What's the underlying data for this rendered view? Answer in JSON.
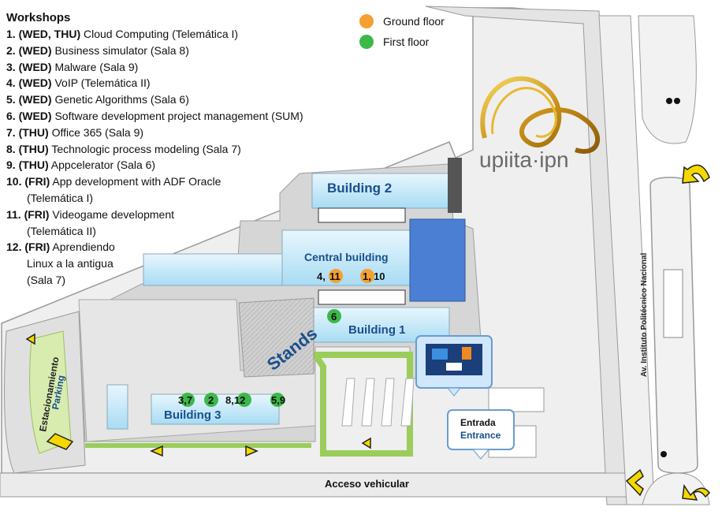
{
  "workshops": {
    "title": "Workshops",
    "items": [
      {
        "num": "1.",
        "days": "(WED, THU)",
        "text": " Cloud Computing (Telemática I)",
        "cont": ""
      },
      {
        "num": "2.",
        "days": "(WED)",
        "text": " Business simulator (Sala 8)",
        "cont": ""
      },
      {
        "num": "3.",
        "days": "(WED)",
        "text": " Malware  (Sala 9)",
        "cont": ""
      },
      {
        "num": "4.",
        "days": "(WED)",
        "text": " VoIP (Telemática II)",
        "cont": ""
      },
      {
        "num": "5.",
        "days": "(WED)",
        "text": " Genetic Algorithms (Sala 6)",
        "cont": ""
      },
      {
        "num": "6.",
        "days": "(WED)",
        "text": " Software development project management (SUM)",
        "cont": ""
      },
      {
        "num": "7.",
        "days": "(THU)",
        "text": " Office 365 (Sala 9)",
        "cont": ""
      },
      {
        "num": "8.",
        "days": "(THU)",
        "text": " Technologic process modeling (Sala 7)",
        "cont": ""
      },
      {
        "num": "9.",
        "days": "(THU)",
        "text": " Appcelerator  (Sala 6)",
        "cont": ""
      },
      {
        "num": "10.",
        "days": "(FRI)",
        "text": " App development with ADF Oracle",
        "cont": "(Telemática I)"
      },
      {
        "num": "11.",
        "days": "(FRI)",
        "text": " Videogame development",
        "cont": "(Telemática II)"
      },
      {
        "num": "12.",
        "days": "(FRI)",
        "text": " Aprendiendo",
        "cont": "Linux a la antigua"
      },
      {
        "num": "",
        "days": "",
        "text": "",
        "cont": "(Sala 7)"
      }
    ]
  },
  "legend": [
    {
      "label": "Ground floor",
      "color": "#f5a030"
    },
    {
      "label": "First floor",
      "color": "#3cb84a"
    }
  ],
  "logo": {
    "text": "upiita·ipn"
  },
  "map": {
    "building2": "Building 2",
    "central": "Central building",
    "building1": "Building 1",
    "building3": "Building 3",
    "stands": "Stands",
    "parking_es": "Estacionamiento",
    "parking_en": "Parking",
    "entrada": "Entrada",
    "entrance": "Entrance",
    "acceso": "Acceso vehicular",
    "avenue": "Av. Instituto Politécnico Nacional",
    "markers": {
      "m_4_11_a": "4,",
      "m_4_11_b": "11",
      "m_1_10_a": "1,",
      "m_1_10_b": "10",
      "m_6": "6",
      "m_3_7": "3,7",
      "m_2": "2",
      "m_8_12": "8,12",
      "m_5_9": "5,9"
    }
  },
  "colors": {
    "ground": "#f5a030",
    "first": "#3cb84a",
    "label_blue": "#1a4f8c",
    "building": "#c8e8f8",
    "gold": "#c8a020"
  }
}
